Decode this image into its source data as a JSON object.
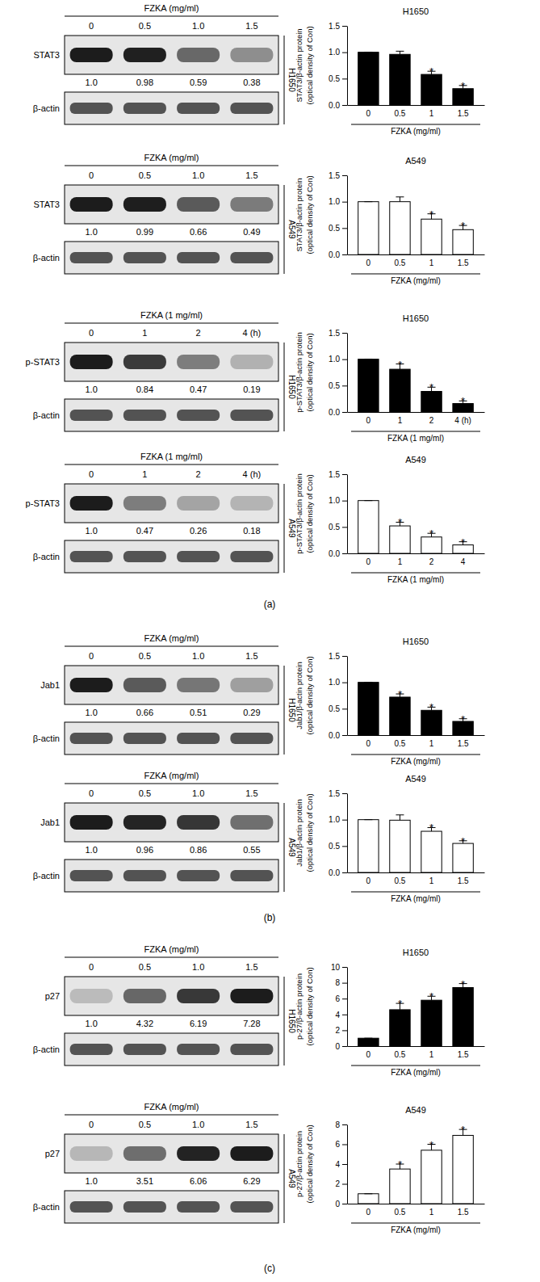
{
  "chart_data": [
    {
      "type": "bar",
      "title": "H1650",
      "y_label": [
        "STAT3/β-actin protein",
        "(optical density of Con)"
      ],
      "x_label": "FZKA (mg/ml)",
      "categories": [
        "0",
        "0.5",
        "1",
        "1.5"
      ],
      "values": [
        1,
        0.96,
        0.58,
        0.31
      ],
      "errors": [
        0,
        0.06,
        0.06,
        0.06
      ],
      "significance": [
        null,
        null,
        "*",
        "*"
      ],
      "color": "#000000",
      "ylim": [
        0,
        1.5
      ],
      "yticks": [
        {
          "value": 0,
          "label": "0.0"
        },
        {
          "value": 0.5,
          "label": "0.5"
        },
        {
          "value": 1,
          "label": "1.0"
        },
        {
          "value": 1.5,
          "label": "1.5"
        }
      ]
    },
    {
      "type": "bar",
      "title": "A549",
      "y_label": [
        "STAT3/β-actin protein",
        "(optical density of Con)"
      ],
      "x_label": "FZKA (mg/ml)",
      "categories": [
        "0",
        "0.5",
        "1",
        "1.5"
      ],
      "values": [
        1,
        1.0,
        0.67,
        0.47
      ],
      "errors": [
        0,
        0.09,
        0.1,
        0.08
      ],
      "significance": [
        null,
        null,
        "*",
        "*"
      ],
      "color": "#ffffff",
      "ylim": [
        0,
        1.5
      ],
      "yticks": [
        {
          "value": 0,
          "label": "0.0"
        },
        {
          "value": 0.5,
          "label": "0.5"
        },
        {
          "value": 1,
          "label": "1.0"
        },
        {
          "value": 1.5,
          "label": "1.5"
        }
      ]
    },
    {
      "type": "bar",
      "title": "H1650",
      "y_label": [
        "p-STAT3/β-actin protein",
        "(optical density of Con)"
      ],
      "x_label": "FZKA (1 mg/ml)",
      "categories": [
        "0",
        "1",
        "2",
        "4 (h)"
      ],
      "values": [
        1,
        0.81,
        0.39,
        0.16
      ],
      "errors": [
        0,
        0.1,
        0.08,
        0.05
      ],
      "significance": [
        null,
        "*",
        "*",
        "*"
      ],
      "color": "#000000",
      "ylim": [
        0,
        1.5
      ],
      "yticks": [
        {
          "value": 0,
          "label": "0.0"
        },
        {
          "value": 0.5,
          "label": "0.5"
        },
        {
          "value": 1,
          "label": "1.0"
        },
        {
          "value": 1.5,
          "label": "1.5"
        }
      ]
    },
    {
      "type": "bar",
      "title": "A549",
      "y_label": [
        "p-STAT3/β-actin protein",
        "(optical density of Con)"
      ],
      "x_label": "FZKA (1 mg/ml)",
      "categories": [
        "0",
        "1",
        "2",
        "4"
      ],
      "values": [
        1,
        0.52,
        0.31,
        0.16
      ],
      "errors": [
        0,
        0.07,
        0.07,
        0.06
      ],
      "significance": [
        null,
        "*",
        "*",
        "*"
      ],
      "color": "#ffffff",
      "ylim": [
        0,
        1.5
      ],
      "yticks": [
        {
          "value": 0,
          "label": "0.0"
        },
        {
          "value": 0.5,
          "label": "0.5"
        },
        {
          "value": 1,
          "label": "1.0"
        },
        {
          "value": 1.5,
          "label": "1.5"
        }
      ]
    },
    {
      "type": "bar",
      "title": "H1650",
      "y_label": [
        "Jab1/β-actin protein",
        "(optical density of Con)"
      ],
      "x_label": "FZKA (mg/ml)",
      "categories": [
        "0",
        "0.5",
        "1",
        "1.5"
      ],
      "values": [
        1,
        0.72,
        0.47,
        0.26
      ],
      "errors": [
        0,
        0.06,
        0.06,
        0.05
      ],
      "significance": [
        null,
        "*",
        "*",
        "*"
      ],
      "color": "#000000",
      "ylim": [
        0,
        1.5
      ],
      "yticks": [
        {
          "value": 0,
          "label": "0.0"
        },
        {
          "value": 0.5,
          "label": "0.5"
        },
        {
          "value": 1,
          "label": "1.0"
        },
        {
          "value": 1.5,
          "label": "1.5"
        }
      ]
    },
    {
      "type": "bar",
      "title": "A549",
      "y_label": [
        "Jab1/β-actin protein",
        "(optical density of Con)"
      ],
      "x_label": "FZKA (mg/ml)",
      "categories": [
        "0",
        "0.5",
        "1",
        "1.5"
      ],
      "values": [
        1,
        0.99,
        0.78,
        0.55
      ],
      "errors": [
        0,
        0.1,
        0.07,
        0.05
      ],
      "significance": [
        null,
        null,
        "*",
        "*"
      ],
      "color": "#ffffff",
      "ylim": [
        0,
        1.5
      ],
      "yticks": [
        {
          "value": 0,
          "label": "0.0"
        },
        {
          "value": 0.5,
          "label": "0.5"
        },
        {
          "value": 1,
          "label": "1.0"
        },
        {
          "value": 1.5,
          "label": "1.5"
        }
      ]
    },
    {
      "type": "bar",
      "title": "H1650",
      "y_label": [
        "p-27/β-actin protein",
        "(optical density of Con)"
      ],
      "x_label": "FZKA (mg/ml)",
      "categories": [
        "0",
        "0.5",
        "1",
        "1.5"
      ],
      "values": [
        1,
        4.6,
        5.8,
        7.4
      ],
      "errors": [
        0,
        0.8,
        0.5,
        0.5
      ],
      "significance": [
        null,
        "*",
        "*",
        "*"
      ],
      "color": "#000000",
      "ylim": [
        0,
        10
      ],
      "yticks": [
        0,
        2,
        4,
        6,
        8,
        10
      ]
    },
    {
      "type": "bar",
      "title": "A549",
      "y_label": [
        "p-27/β-actin protein",
        "(optical density of Con)"
      ],
      "x_label": "FZKA (mg/ml)",
      "categories": [
        "0",
        "0.5",
        "1",
        "1.5"
      ],
      "values": [
        1,
        3.5,
        5.4,
        6.9
      ],
      "errors": [
        0,
        0.5,
        0.6,
        0.6
      ],
      "significance": [
        null,
        "*",
        "*",
        "*"
      ],
      "color": "#ffffff",
      "ylim": [
        0,
        8
      ],
      "yticks": [
        0,
        2,
        4,
        6,
        8
      ]
    }
  ],
  "blots": [
    {
      "header": "FZKA (mg/ml)",
      "lanes": [
        "0",
        "0.5",
        "1.0",
        "1.5"
      ],
      "cell_line": "H1650",
      "protein": "STAT3",
      "loading_control": "β-actin",
      "values": [
        1.0,
        0.98,
        0.59,
        0.38
      ],
      "value_labels": [
        "1.0",
        "0.98",
        "0.59",
        "0.38"
      ]
    },
    {
      "header": "FZKA (mg/ml)",
      "lanes": [
        "0",
        "0.5",
        "1.0",
        "1.5"
      ],
      "cell_line": "A549",
      "protein": "STAT3",
      "loading_control": "β-actin",
      "values": [
        1.0,
        0.99,
        0.66,
        0.49
      ],
      "value_labels": [
        "1.0",
        "0.99",
        "0.66",
        "0.49"
      ]
    },
    {
      "header": "FZKA (1 mg/ml)",
      "lanes": [
        "0",
        "1",
        "2",
        "4 (h)"
      ],
      "cell_line": "H1650",
      "protein": "p-STAT3",
      "loading_control": "β-actin",
      "values": [
        1.0,
        0.84,
        0.47,
        0.19
      ],
      "value_labels": [
        "1.0",
        "0.84",
        "0.47",
        "0.19"
      ]
    },
    {
      "header": "FZKA (1 mg/ml)",
      "lanes": [
        "0",
        "1",
        "2",
        "4 (h)"
      ],
      "cell_line": "A549",
      "protein": "p-STAT3",
      "loading_control": "β-actin",
      "values": [
        1.0,
        0.47,
        0.26,
        0.18
      ],
      "value_labels": [
        "1.0",
        "0.47",
        "0.26",
        "0.18"
      ]
    },
    {
      "header": "FZKA (mg/ml)",
      "lanes": [
        "0",
        "0.5",
        "1.0",
        "1.5"
      ],
      "cell_line": "H1650",
      "protein": "Jab1",
      "loading_control": "β-actin",
      "values": [
        1.0,
        0.66,
        0.51,
        0.29
      ],
      "value_labels": [
        "1.0",
        "0.66",
        "0.51",
        "0.29"
      ]
    },
    {
      "header": "FZKA (mg/ml)",
      "lanes": [
        "0",
        "0.5",
        "1.0",
        "1.5"
      ],
      "cell_line": "A549",
      "protein": "Jab1",
      "loading_control": "β-actin",
      "values": [
        1.0,
        0.96,
        0.86,
        0.55
      ],
      "value_labels": [
        "1.0",
        "0.96",
        "0.86",
        "0.55"
      ]
    },
    {
      "header": "FZKA (mg/ml)",
      "lanes": [
        "0",
        "0.5",
        "1.0",
        "1.5"
      ],
      "cell_line": "H1650",
      "protein": "p27",
      "loading_control": "β-actin",
      "values": [
        1.0,
        4.32,
        6.19,
        7.28
      ],
      "value_labels": [
        "1.0",
        "4.32",
        "6.19",
        "7.28"
      ]
    },
    {
      "header": "FZKA (mg/ml)",
      "lanes": [
        "0",
        "0.5",
        "1.0",
        "1.5"
      ],
      "cell_line": "A549",
      "protein": "p27",
      "loading_control": "β-actin",
      "values": [
        1.0,
        3.51,
        6.06,
        6.29
      ],
      "value_labels": [
        "1.0",
        "3.51",
        "6.06",
        "6.29"
      ]
    }
  ],
  "panels": [
    "(a)",
    "(b)",
    "(c)"
  ]
}
